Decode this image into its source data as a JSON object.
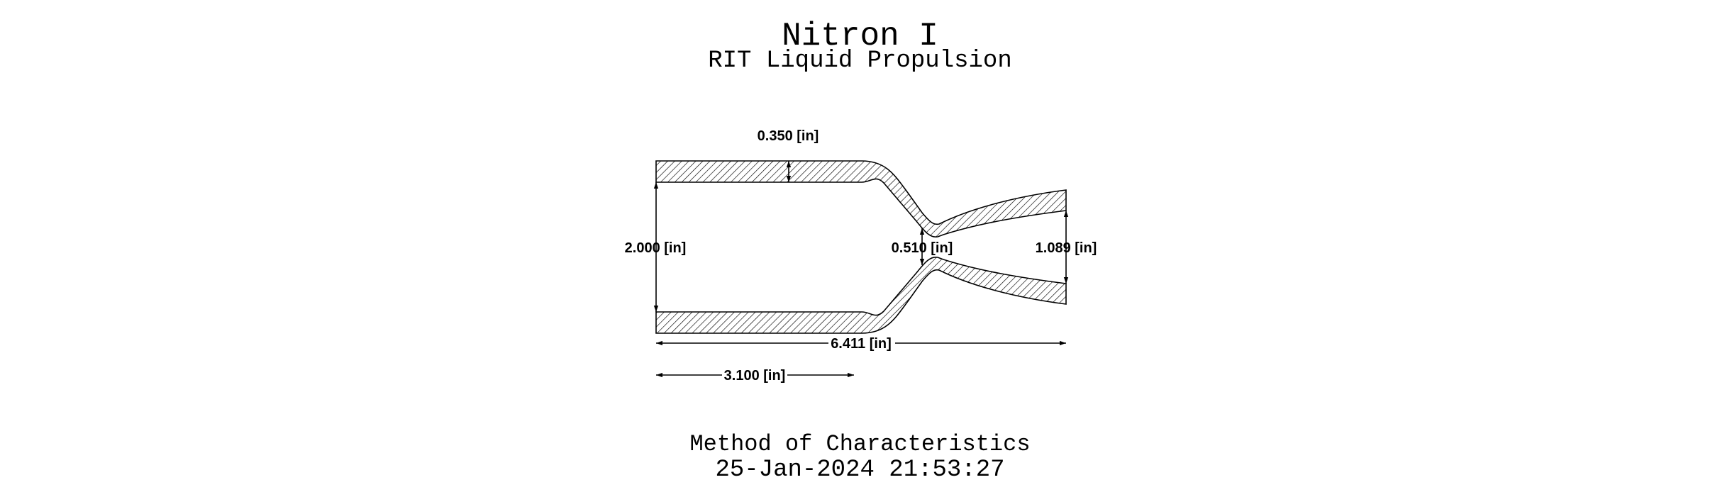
{
  "header": {
    "title": "Nitron I",
    "subtitle": "RIT Liquid Propulsion"
  },
  "footer": {
    "method": "Method of Characteristics",
    "timestamp": "25-Jan-2024 21:53:27"
  },
  "dimensions": {
    "wall_thickness": "0.350 [in]",
    "chamber_diameter": "2.000 [in]",
    "throat_diameter": "0.510 [in]",
    "exit_diameter": "1.089 [in]",
    "total_length": "6.411 [in]",
    "chamber_length": "3.100 [in]"
  },
  "geometry_in": {
    "wall_thickness": 0.35,
    "chamber_diameter": 2.0,
    "throat_diameter": 0.51,
    "exit_diameter": 1.089,
    "total_length": 6.411,
    "chamber_length": 3.1
  },
  "colors": {
    "line": "#000000",
    "background": "#ffffff"
  }
}
